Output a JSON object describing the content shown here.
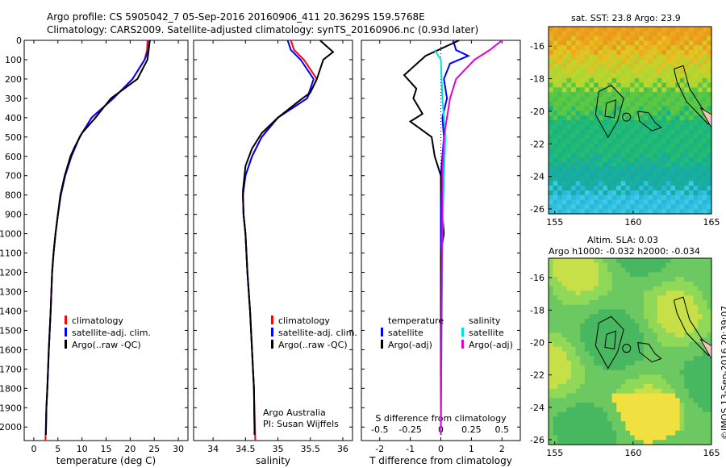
{
  "title_line1": "Argo profile: CS 5905042_7 05-Sep-2016 20160906_411 20.3629S 159.5768E",
  "title_line2": "Climatology: CARS2009. Satellite-adjusted climatology: synTS_20160906.nc (0.93d later)",
  "chart_data": [
    {
      "type": "line",
      "name": "temperature",
      "xlabel": "temperature (deg C)",
      "ylabel": "",
      "xlim": [
        -2,
        32
      ],
      "ylim": [
        2070,
        0
      ],
      "xticks": [
        0,
        5,
        10,
        15,
        20,
        25,
        30
      ],
      "yticks": [
        0,
        100,
        200,
        300,
        400,
        500,
        600,
        700,
        800,
        900,
        1000,
        1100,
        1200,
        1300,
        1400,
        1500,
        1600,
        1700,
        1800,
        1900,
        2000
      ],
      "legend": [
        "climatology",
        "satellite-adj. clim.",
        "Argo(..raw -QC)"
      ],
      "series": [
        {
          "name": "climatology",
          "color": "#ff0000",
          "points": [
            [
              23.6,
              0
            ],
            [
              23.5,
              50
            ],
            [
              23.0,
              100
            ],
            [
              20.5,
              200
            ],
            [
              16.5,
              300
            ],
            [
              12.0,
              400
            ],
            [
              9.5,
              500
            ],
            [
              7.8,
              600
            ],
            [
              6.5,
              700
            ],
            [
              5.6,
              800
            ],
            [
              5.0,
              900
            ],
            [
              4.5,
              1000
            ],
            [
              4.1,
              1100
            ],
            [
              3.8,
              1200
            ],
            [
              3.5,
              1400
            ],
            [
              3.1,
              1600
            ],
            [
              2.8,
              1800
            ],
            [
              2.6,
              1900
            ],
            [
              2.4,
              2070
            ]
          ]
        },
        {
          "name": "satellite-adj. clim.",
          "color": "#0000ff",
          "points": [
            [
              24.0,
              0
            ],
            [
              23.8,
              50
            ],
            [
              23.0,
              100
            ],
            [
              20.5,
              200
            ],
            [
              16.5,
              300
            ],
            [
              12.0,
              400
            ],
            [
              9.5,
              500
            ],
            [
              7.8,
              600
            ],
            [
              6.5,
              700
            ],
            [
              5.6,
              800
            ],
            [
              5.0,
              900
            ],
            [
              4.5,
              1000
            ],
            [
              4.1,
              1100
            ],
            [
              3.8,
              1200
            ],
            [
              3.5,
              1400
            ],
            [
              3.1,
              1600
            ],
            [
              2.8,
              1800
            ],
            [
              2.6,
              1900
            ],
            [
              2.5,
              2040
            ]
          ]
        },
        {
          "name": "Argo(..raw -QC)",
          "color": "#000000",
          "points": [
            [
              24.1,
              0
            ],
            [
              23.9,
              40
            ],
            [
              23.6,
              100
            ],
            [
              21.5,
              200
            ],
            [
              16.0,
              300
            ],
            [
              12.8,
              400
            ],
            [
              10.0,
              480
            ],
            [
              8.5,
              550
            ],
            [
              7.6,
              600
            ],
            [
              6.4,
              700
            ],
            [
              5.5,
              800
            ],
            [
              5.0,
              900
            ],
            [
              4.5,
              1000
            ],
            [
              4.1,
              1100
            ],
            [
              3.8,
              1200
            ],
            [
              3.5,
              1400
            ],
            [
              3.1,
              1600
            ],
            [
              2.8,
              1800
            ],
            [
              2.6,
              1900
            ],
            [
              2.5,
              2040
            ]
          ]
        }
      ]
    },
    {
      "type": "line",
      "name": "salinity",
      "xlabel": "salinity",
      "xlim": [
        33.7,
        36.15
      ],
      "ylim": [
        2070,
        0
      ],
      "xticks": [
        34,
        34.5,
        35,
        35.5,
        36
      ],
      "legend": [
        "climatology",
        "satellite-adj. clim.",
        "Argo(..raw -QC)"
      ],
      "series": [
        {
          "name": "climatology",
          "color": "#ff0000",
          "points": [
            [
              35.2,
              0
            ],
            [
              35.25,
              50
            ],
            [
              35.4,
              100
            ],
            [
              35.6,
              200
            ],
            [
              35.45,
              300
            ],
            [
              35.0,
              400
            ],
            [
              34.75,
              500
            ],
            [
              34.6,
              600
            ],
            [
              34.5,
              700
            ],
            [
              34.46,
              800
            ],
            [
              34.47,
              900
            ],
            [
              34.5,
              1000
            ],
            [
              34.53,
              1200
            ],
            [
              34.57,
              1400
            ],
            [
              34.6,
              1600
            ],
            [
              34.63,
              1800
            ],
            [
              34.65,
              2070
            ]
          ]
        },
        {
          "name": "satellite-adj. clim.",
          "color": "#0000ff",
          "points": [
            [
              35.15,
              0
            ],
            [
              35.2,
              50
            ],
            [
              35.35,
              100
            ],
            [
              35.55,
              200
            ],
            [
              35.45,
              300
            ],
            [
              35.0,
              400
            ],
            [
              34.75,
              500
            ],
            [
              34.6,
              600
            ],
            [
              34.5,
              700
            ],
            [
              34.46,
              800
            ],
            [
              34.47,
              900
            ],
            [
              34.5,
              1000
            ],
            [
              34.53,
              1200
            ],
            [
              34.57,
              1400
            ],
            [
              34.6,
              1600
            ],
            [
              34.63,
              1800
            ],
            [
              34.64,
              2040
            ]
          ]
        },
        {
          "name": "Argo(..raw -QC)",
          "color": "#000000",
          "points": [
            [
              35.65,
              0
            ],
            [
              35.75,
              30
            ],
            [
              35.85,
              60
            ],
            [
              35.7,
              100
            ],
            [
              35.65,
              150
            ],
            [
              35.6,
              200
            ],
            [
              35.5,
              270
            ],
            [
              35.3,
              320
            ],
            [
              35.0,
              400
            ],
            [
              34.75,
              480
            ],
            [
              34.6,
              560
            ],
            [
              34.5,
              650
            ],
            [
              34.46,
              780
            ],
            [
              34.47,
              900
            ],
            [
              34.5,
              1000
            ],
            [
              34.53,
              1200
            ],
            [
              34.57,
              1400
            ],
            [
              34.6,
              1600
            ],
            [
              34.63,
              1800
            ],
            [
              34.64,
              2040
            ]
          ]
        }
      ]
    },
    {
      "type": "line",
      "name": "difference",
      "xlabel": "T difference from climatology",
      "xlabel_top": "S difference from climatology",
      "xlim": [
        -2.6,
        2.6
      ],
      "ylim": [
        2070,
        0
      ],
      "xticks": [
        -2,
        -1,
        0,
        1,
        2
      ],
      "xticks_top_values": [
        "-0.5",
        "-0.25",
        "0",
        "0.25",
        "0.5"
      ],
      "legend": [
        "temperature",
        "satellite",
        "Argo(-adj)",
        "salinity",
        "satellite",
        "Argo(-adj)"
      ],
      "series": [
        {
          "name": "temperature satellite",
          "color": "#0000ff",
          "points": [
            [
              0.4,
              0
            ],
            [
              0.5,
              50
            ],
            [
              0.9,
              80
            ],
            [
              0.3,
              120
            ],
            [
              0.1,
              200
            ],
            [
              0.2,
              300
            ],
            [
              0.05,
              400
            ],
            [
              0.1,
              500
            ],
            [
              0.0,
              700
            ],
            [
              0.0,
              2040
            ]
          ]
        },
        {
          "name": "temperature Argo(-adj)",
          "color": "#000000",
          "points": [
            [
              0.6,
              0
            ],
            [
              -0.5,
              80
            ],
            [
              -1.2,
              180
            ],
            [
              -0.8,
              250
            ],
            [
              -0.9,
              300
            ],
            [
              -0.6,
              380
            ],
            [
              -1.0,
              420
            ],
            [
              -0.3,
              500
            ],
            [
              -0.2,
              600
            ],
            [
              0.0,
              700
            ],
            [
              0.05,
              900
            ],
            [
              0.1,
              1000
            ],
            [
              0.0,
              1100
            ],
            [
              0.0,
              2040
            ]
          ]
        },
        {
          "name": "salinity satellite",
          "color": "#00e0e0",
          "points": [
            [
              -0.2,
              50
            ],
            [
              0.0,
              100
            ],
            [
              0.05,
              300
            ],
            [
              0.15,
              500
            ],
            [
              0.1,
              700
            ],
            [
              0.05,
              1000
            ],
            [
              0.0,
              2040
            ]
          ]
        },
        {
          "name": "salinity Argo(-adj)",
          "color": "#e000e0",
          "points": [
            [
              2.0,
              0
            ],
            [
              1.6,
              50
            ],
            [
              1.1,
              100
            ],
            [
              0.5,
              200
            ],
            [
              0.3,
              300
            ],
            [
              0.2,
              400
            ],
            [
              0.1,
              500
            ],
            [
              0.05,
              700
            ],
            [
              0.0,
              2040
            ]
          ]
        }
      ]
    },
    {
      "type": "heatmap",
      "name": "sst-map",
      "title": "sat. SST: 23.8 Argo: 23.9",
      "xlim": [
        154.6,
        165
      ],
      "ylim": [
        -26.3,
        -14.8
      ],
      "xticks": [
        155,
        160,
        165
      ],
      "yticks": [
        -16,
        -18,
        -20,
        -22,
        -24,
        -26
      ],
      "marker": [
        159.58,
        -20.36
      ]
    },
    {
      "type": "heatmap",
      "name": "sla-map",
      "title_line1": "Altim. SLA: 0.03",
      "title_line2": "Argo h1000: -0.032 h2000: -0.034",
      "xlim": [
        154.6,
        165
      ],
      "ylim": [
        -26.3,
        -14.8
      ],
      "xticks": [
        155,
        160,
        165
      ],
      "yticks": [
        -16,
        -18,
        -20,
        -22,
        -24,
        -26
      ],
      "marker": [
        159.58,
        -20.36
      ]
    }
  ],
  "panel1": {
    "legend": [
      {
        "label": "climatology",
        "color": "#ff0000"
      },
      {
        "label": "satellite-adj. clim.",
        "color": "#0000ff"
      },
      {
        "label": "Argo(..raw -QC)",
        "color": "#000000"
      }
    ]
  },
  "panel2": {
    "legend": [
      {
        "label": "climatology",
        "color": "#ff0000"
      },
      {
        "label": "satellite-adj. clim.",
        "color": "#0000ff"
      },
      {
        "label": "Argo(..raw -QC)",
        "color": "#000000"
      }
    ],
    "note1": "Argo Australia",
    "note2": "PI: Susan Wijffels"
  },
  "panel3": {
    "legend_t_title": "temperature",
    "legend_t1": "satellite",
    "legend_t2": "Argo(-adj)",
    "legend_s_title": "salinity",
    "legend_s1": "satellite",
    "legend_s2": "Argo(-adj)"
  },
  "side_stamp": "©IMOS 13-Sep-2016 20:39:07"
}
